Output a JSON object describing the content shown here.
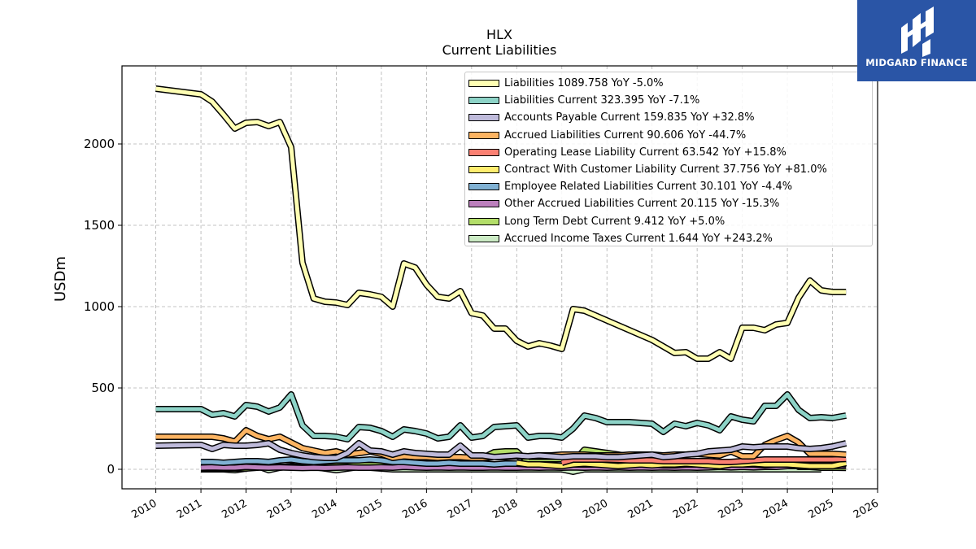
{
  "brand": {
    "name": "MIDGARD FINANCE",
    "color": "#2a55a6"
  },
  "chart_data": {
    "type": "line",
    "title": "HLX",
    "subtitle": "Current  Liabilities",
    "ylabel": "USDm",
    "xlabel": "",
    "xlim": [
      2009.25,
      2026.0
    ],
    "ylim": [
      -120,
      2480
    ],
    "xticks": [
      2010,
      2011,
      2012,
      2013,
      2014,
      2015,
      2016,
      2017,
      2018,
      2019,
      2020,
      2021,
      2022,
      2023,
      2024,
      2025,
      2026
    ],
    "yticks": [
      0,
      500,
      1000,
      1500,
      2000
    ],
    "grid": true,
    "legend_position": "top-right",
    "series": [
      {
        "name": "Liabilities",
        "legend": "Liabilities  1089.758 YoY -5.0%",
        "color": "#ffffb3",
        "x": [
          2010.0,
          2011.0,
          2011.25,
          2011.5,
          2011.75,
          2012.0,
          2012.25,
          2012.5,
          2012.75,
          2013.0,
          2013.25,
          2013.5,
          2013.75,
          2014.0,
          2014.25,
          2014.5,
          2014.75,
          2015.0,
          2015.25,
          2015.5,
          2015.75,
          2016.0,
          2016.25,
          2016.5,
          2016.75,
          2017.0,
          2017.25,
          2017.5,
          2017.75,
          2018.0,
          2018.25,
          2018.5,
          2018.75,
          2019.0,
          2019.25,
          2019.5,
          2019.75,
          2020.0,
          2020.25,
          2020.5,
          2020.75,
          2021.0,
          2021.25,
          2021.5,
          2021.75,
          2022.0,
          2022.25,
          2022.5,
          2022.75,
          2023.0,
          2023.25,
          2023.5,
          2023.75,
          2024.0,
          2024.25,
          2024.5,
          2024.75,
          2025.0,
          2025.3
        ],
        "y": [
          2340,
          2305,
          2260,
          2180,
          2095,
          2130,
          2135,
          2110,
          2135,
          1980,
          1270,
          1050,
          1030,
          1025,
          1010,
          1085,
          1075,
          1060,
          1000,
          1265,
          1240,
          1135,
          1060,
          1050,
          1095,
          960,
          945,
          865,
          865,
          790,
          755,
          775,
          760,
          740,
          985,
          975,
          945,
          915,
          885,
          855,
          825,
          795,
          755,
          715,
          720,
          680,
          680,
          720,
          680,
          870,
          870,
          855,
          890,
          900,
          1055,
          1160,
          1100,
          1090,
          1090
        ]
      },
      {
        "name": "Liabilities Current",
        "legend": "Liabilities Current  323.395 YoY -7.1%",
        "color": "#8dd3c7",
        "x": [
          2010.0,
          2011.0,
          2011.25,
          2011.5,
          2011.75,
          2012.0,
          2012.25,
          2012.5,
          2012.75,
          2013.0,
          2013.25,
          2013.5,
          2013.75,
          2014.0,
          2014.25,
          2014.5,
          2014.75,
          2015.0,
          2015.25,
          2015.5,
          2015.75,
          2016.0,
          2016.25,
          2016.5,
          2016.75,
          2017.0,
          2017.25,
          2017.5,
          2017.75,
          2018.0,
          2018.25,
          2018.5,
          2018.75,
          2019.0,
          2019.25,
          2019.5,
          2019.75,
          2020.0,
          2020.25,
          2020.5,
          2020.75,
          2021.0,
          2021.25,
          2021.5,
          2021.75,
          2022.0,
          2022.25,
          2022.5,
          2022.75,
          2023.0,
          2023.25,
          2023.5,
          2023.75,
          2024.0,
          2024.25,
          2024.5,
          2024.75,
          2025.0,
          2025.3
        ],
        "y": [
          370,
          370,
          335,
          345,
          325,
          395,
          385,
          355,
          380,
          460,
          270,
          205,
          205,
          200,
          185,
          260,
          255,
          235,
          200,
          245,
          235,
          220,
          190,
          200,
          270,
          195,
          205,
          260,
          265,
          270,
          195,
          205,
          205,
          195,
          250,
          330,
          315,
          290,
          290,
          290,
          285,
          280,
          230,
          280,
          265,
          285,
          270,
          240,
          325,
          305,
          295,
          390,
          390,
          460,
          365,
          315,
          320,
          315,
          330
        ]
      },
      {
        "name": "Accounts Payable Current",
        "legend": "Accounts Payable Current  159.835 YoY +32.8%",
        "color": "#bebada",
        "x": [
          2010.0,
          2011.0,
          2011.25,
          2011.5,
          2011.75,
          2012.0,
          2012.25,
          2012.5,
          2012.75,
          2013.0,
          2013.25,
          2013.5,
          2013.75,
          2014.0,
          2014.25,
          2014.5,
          2014.75,
          2015.0,
          2015.25,
          2015.5,
          2015.75,
          2016.0,
          2016.25,
          2016.5,
          2016.75,
          2017.0,
          2017.25,
          2017.5,
          2017.75,
          2018.0,
          2018.25,
          2018.5,
          2018.75,
          2019.0,
          2019.25,
          2019.5,
          2019.75,
          2020.0,
          2020.25,
          2020.5,
          2020.75,
          2021.0,
          2021.25,
          2021.5,
          2021.75,
          2022.0,
          2022.25,
          2022.5,
          2022.75,
          2023.0,
          2023.25,
          2023.5,
          2023.75,
          2024.0,
          2024.25,
          2024.5,
          2024.75,
          2025.0,
          2025.3
        ],
        "y": [
          145,
          150,
          125,
          150,
          145,
          145,
          150,
          160,
          120,
          100,
          85,
          75,
          70,
          70,
          100,
          160,
          115,
          110,
          90,
          110,
          100,
          95,
          90,
          90,
          145,
          85,
          85,
          75,
          80,
          85,
          80,
          85,
          80,
          75,
          80,
          80,
          80,
          75,
          75,
          80,
          85,
          90,
          75,
          80,
          90,
          95,
          110,
          115,
          120,
          140,
          135,
          140,
          140,
          140,
          130,
          125,
          130,
          140,
          160
        ]
      },
      {
        "name": "Accrued Liabilities Current",
        "legend": "Accrued Liabilities Current  90.606 YoY -44.7%",
        "color": "#fdb462",
        "x": [
          2010.0,
          2011.0,
          2011.25,
          2011.5,
          2011.75,
          2012.0,
          2012.25,
          2012.5,
          2012.75,
          2013.0,
          2013.25,
          2013.5,
          2013.75,
          2014.0,
          2014.25,
          2014.5,
          2014.75,
          2015.0,
          2015.25,
          2015.5,
          2015.75,
          2016.0,
          2016.25,
          2016.5,
          2016.75,
          2017.0,
          2017.25,
          2017.5,
          2017.75,
          2018.0,
          2018.25,
          2018.5,
          2018.75,
          2019.0,
          2019.25,
          2019.5,
          2019.75,
          2020.0,
          2020.25,
          2020.5,
          2020.75,
          2021.0,
          2021.25,
          2021.5,
          2021.75,
          2022.0,
          2022.25,
          2022.5,
          2022.75,
          2023.0,
          2023.25,
          2023.5,
          2023.75,
          2024.0,
          2024.25,
          2024.5,
          2024.75,
          2025.0,
          2025.3
        ],
        "y": [
          200,
          200,
          200,
          190,
          170,
          240,
          205,
          185,
          200,
          165,
          130,
          115,
          100,
          110,
          90,
          100,
          110,
          95,
          70,
          80,
          75,
          75,
          70,
          75,
          75,
          70,
          70,
          75,
          75,
          80,
          80,
          85,
          85,
          90,
          90,
          90,
          85,
          85,
          85,
          90,
          90,
          90,
          85,
          90,
          90,
          95,
          90,
          85,
          110,
          80,
          80,
          150,
          180,
          205,
          165,
          95,
          95,
          95,
          90
        ]
      },
      {
        "name": "Operating Lease Liability Current",
        "legend": "Operating Lease Liability Current  63.542 YoY +15.8%",
        "color": "#fb8072",
        "x": [
          2019.0,
          2019.25,
          2019.5,
          2019.75,
          2020.0,
          2020.25,
          2020.5,
          2020.75,
          2021.0,
          2021.25,
          2021.5,
          2021.75,
          2022.0,
          2022.25,
          2022.5,
          2022.75,
          2023.0,
          2023.25,
          2023.5,
          2023.75,
          2024.0,
          2024.25,
          2024.5,
          2024.75,
          2025.0,
          2025.3
        ],
        "y": [
          40,
          60,
          60,
          60,
          60,
          58,
          55,
          55,
          55,
          50,
          50,
          50,
          50,
          50,
          45,
          45,
          50,
          55,
          60,
          60,
          60,
          60,
          60,
          60,
          60,
          64
        ]
      },
      {
        "name": "Contract With Customer Liability Current",
        "legend": "Contract With Customer Liability Current  37.756 YoY +81.0%",
        "color": "#ffed6f",
        "x": [
          2018.0,
          2018.25,
          2018.5,
          2018.75,
          2019.0,
          2019.25,
          2019.5,
          2019.75,
          2020.0,
          2020.25,
          2020.5,
          2020.75,
          2021.0,
          2021.25,
          2021.5,
          2021.75,
          2022.0,
          2022.25,
          2022.5,
          2022.75,
          2023.0,
          2023.25,
          2023.5,
          2023.75,
          2024.0,
          2024.25,
          2024.5,
          2024.75,
          2025.0,
          2025.3
        ],
        "y": [
          40,
          30,
          30,
          25,
          20,
          30,
          35,
          30,
          25,
          20,
          25,
          30,
          25,
          30,
          30,
          35,
          30,
          25,
          20,
          30,
          30,
          35,
          30,
          30,
          30,
          25,
          20,
          20,
          20,
          38
        ]
      },
      {
        "name": "Employee Related Liabilities Current",
        "legend": "Employee Related Liabilities Current  30.101 YoY -4.4%",
        "color": "#80b1d3",
        "x": [
          2011.0,
          2011.25,
          2011.5,
          2011.75,
          2012.0,
          2012.25,
          2012.5,
          2012.75,
          2013.0,
          2013.25,
          2013.5,
          2013.75,
          2014.0,
          2014.25,
          2014.5,
          2014.75,
          2015.0,
          2015.25,
          2015.5,
          2015.75,
          2016.0,
          2016.25,
          2016.5,
          2016.75,
          2017.0,
          2017.25,
          2017.5,
          2017.75,
          2018.0,
          2018.25,
          2018.5,
          2018.75,
          2019.0,
          2019.25,
          2019.5,
          2019.75,
          2020.0,
          2020.25,
          2020.5,
          2020.75,
          2021.0,
          2021.25,
          2021.5,
          2021.75,
          2022.0,
          2022.25,
          2022.5,
          2022.75,
          2023.0,
          2023.25,
          2023.5,
          2023.75,
          2024.0,
          2024.25,
          2024.5,
          2024.75,
          2025.0,
          2025.3
        ],
        "y": [
          45,
          45,
          40,
          45,
          50,
          50,
          45,
          55,
          60,
          50,
          45,
          50,
          55,
          55,
          55,
          60,
          55,
          45,
          45,
          40,
          35,
          35,
          40,
          35,
          35,
          35,
          30,
          35,
          35,
          30,
          30,
          30,
          30,
          30,
          30,
          30,
          30,
          25,
          30,
          30,
          30,
          25,
          25,
          30,
          30,
          25,
          25,
          30,
          30,
          30,
          25,
          30,
          35,
          45,
          40,
          45,
          35,
          30
        ]
      },
      {
        "name": "Other Accrued Liabilities Current",
        "legend": "Other Accrued Liabilities Current  20.115 YoY -15.3%",
        "color": "#bc80bd",
        "x": [
          2011.0,
          2011.25,
          2011.5,
          2011.75,
          2012.0,
          2012.25,
          2012.5,
          2012.75,
          2013.0,
          2013.25,
          2013.5,
          2013.75,
          2014.0,
          2014.25,
          2014.5,
          2014.75,
          2015.0,
          2015.25,
          2015.5,
          2015.75,
          2016.0,
          2016.25,
          2016.5,
          2016.75,
          2017.0,
          2017.25,
          2017.5,
          2017.75,
          2018.0,
          2018.25,
          2018.5,
          2018.75,
          2019.0,
          2019.25,
          2019.5,
          2019.75,
          2020.0,
          2020.25,
          2020.5,
          2020.75,
          2021.0,
          2021.25,
          2021.5,
          2021.75,
          2022.0,
          2022.25,
          2022.5,
          2022.75,
          2023.0,
          2023.25,
          2023.5,
          2023.75,
          2024.0,
          2024.25,
          2024.5,
          2024.75,
          2025.0,
          2025.3
        ],
        "y": [
          10,
          12,
          10,
          10,
          15,
          12,
          10,
          12,
          10,
          8,
          10,
          8,
          10,
          12,
          10,
          10,
          12,
          10,
          15,
          12,
          10,
          12,
          10,
          12,
          10,
          10,
          12,
          10,
          10,
          12,
          10,
          12,
          10,
          12,
          10,
          12,
          10,
          12,
          10,
          12,
          10,
          12,
          10,
          12,
          10,
          12,
          15,
          12,
          15,
          12,
          15,
          15,
          20,
          20,
          18,
          20,
          22,
          20
        ]
      },
      {
        "name": "Long Term Debt Current",
        "legend": "Long Term Debt Current  9.412 YoY +5.0%",
        "color": "#b3de69",
        "x": [
          2011.0,
          2011.25,
          2011.5,
          2011.75,
          2012.0,
          2012.25,
          2012.5,
          2012.75,
          2013.0,
          2013.25,
          2013.5,
          2013.75,
          2014.0,
          2014.25,
          2014.5,
          2014.75,
          2015.0,
          2015.25,
          2015.5,
          2015.75,
          2016.0,
          2016.25,
          2016.5,
          2016.75,
          2017.0,
          2017.25,
          2017.5,
          2017.75,
          2018.0,
          2018.25,
          2018.5,
          2018.75,
          2019.0,
          2019.25,
          2019.5,
          2019.75,
          2020.0,
          2020.25,
          2020.5,
          2020.75,
          2021.0,
          2021.25,
          2021.5,
          2021.75,
          2022.0,
          2022.25,
          2022.5,
          2022.75,
          2023.0,
          2023.25,
          2023.5,
          2023.75,
          2024.0,
          2024.25,
          2024.5,
          2024.75,
          2025.0,
          2025.3
        ],
        "y": [
          5,
          5,
          5,
          5,
          5,
          10,
          15,
          15,
          15,
          15,
          15,
          15,
          20,
          20,
          25,
          25,
          25,
          30,
          65,
          70,
          70,
          70,
          70,
          70,
          70,
          70,
          105,
          110,
          110,
          45,
          45,
          45,
          45,
          45,
          120,
          110,
          100,
          90,
          80,
          70,
          70,
          20,
          55,
          25,
          20,
          20,
          25,
          30,
          30,
          25,
          20,
          20,
          55,
          15,
          15,
          10,
          10,
          9
        ]
      },
      {
        "name": "Accrued Income Taxes Current",
        "legend": "Accrued Income Taxes Current  1.644 YoY +243.2%",
        "color": "#ccebc5",
        "x": [
          2011.0,
          2011.25,
          2011.5,
          2011.75,
          2012.0,
          2012.25,
          2012.5,
          2012.75,
          2013.0,
          2013.25,
          2013.5,
          2013.75,
          2014.0,
          2014.25,
          2014.5,
          2014.75,
          2015.0,
          2015.25,
          2015.5,
          2015.75,
          2016.0,
          2016.25,
          2016.5,
          2016.75,
          2017.0,
          2017.25,
          2017.5,
          2017.75,
          2018.0,
          2018.25,
          2018.5,
          2018.75,
          2019.0,
          2019.25,
          2019.5,
          2019.75,
          2020.0,
          2020.25,
          2020.5,
          2020.75,
          2021.0,
          2021.25,
          2021.5,
          2021.75,
          2022.0,
          2022.25,
          2022.5,
          2022.75,
          2023.0,
          2023.25,
          2023.5,
          2023.75,
          2024.0,
          2024.25,
          2024.5,
          2024.75
        ],
        "y": [
          0,
          0,
          0,
          -5,
          5,
          20,
          -5,
          10,
          20,
          30,
          15,
          5,
          -5,
          5,
          15,
          10,
          5,
          0,
          0,
          0,
          0,
          0,
          0,
          0,
          0,
          0,
          0,
          0,
          0,
          0,
          0,
          0,
          0,
          -15,
          0,
          0,
          0,
          0,
          0,
          0,
          0,
          0,
          0,
          0,
          0,
          0,
          0,
          0,
          0,
          0,
          0,
          0,
          0,
          0,
          0,
          0
        ]
      }
    ]
  }
}
